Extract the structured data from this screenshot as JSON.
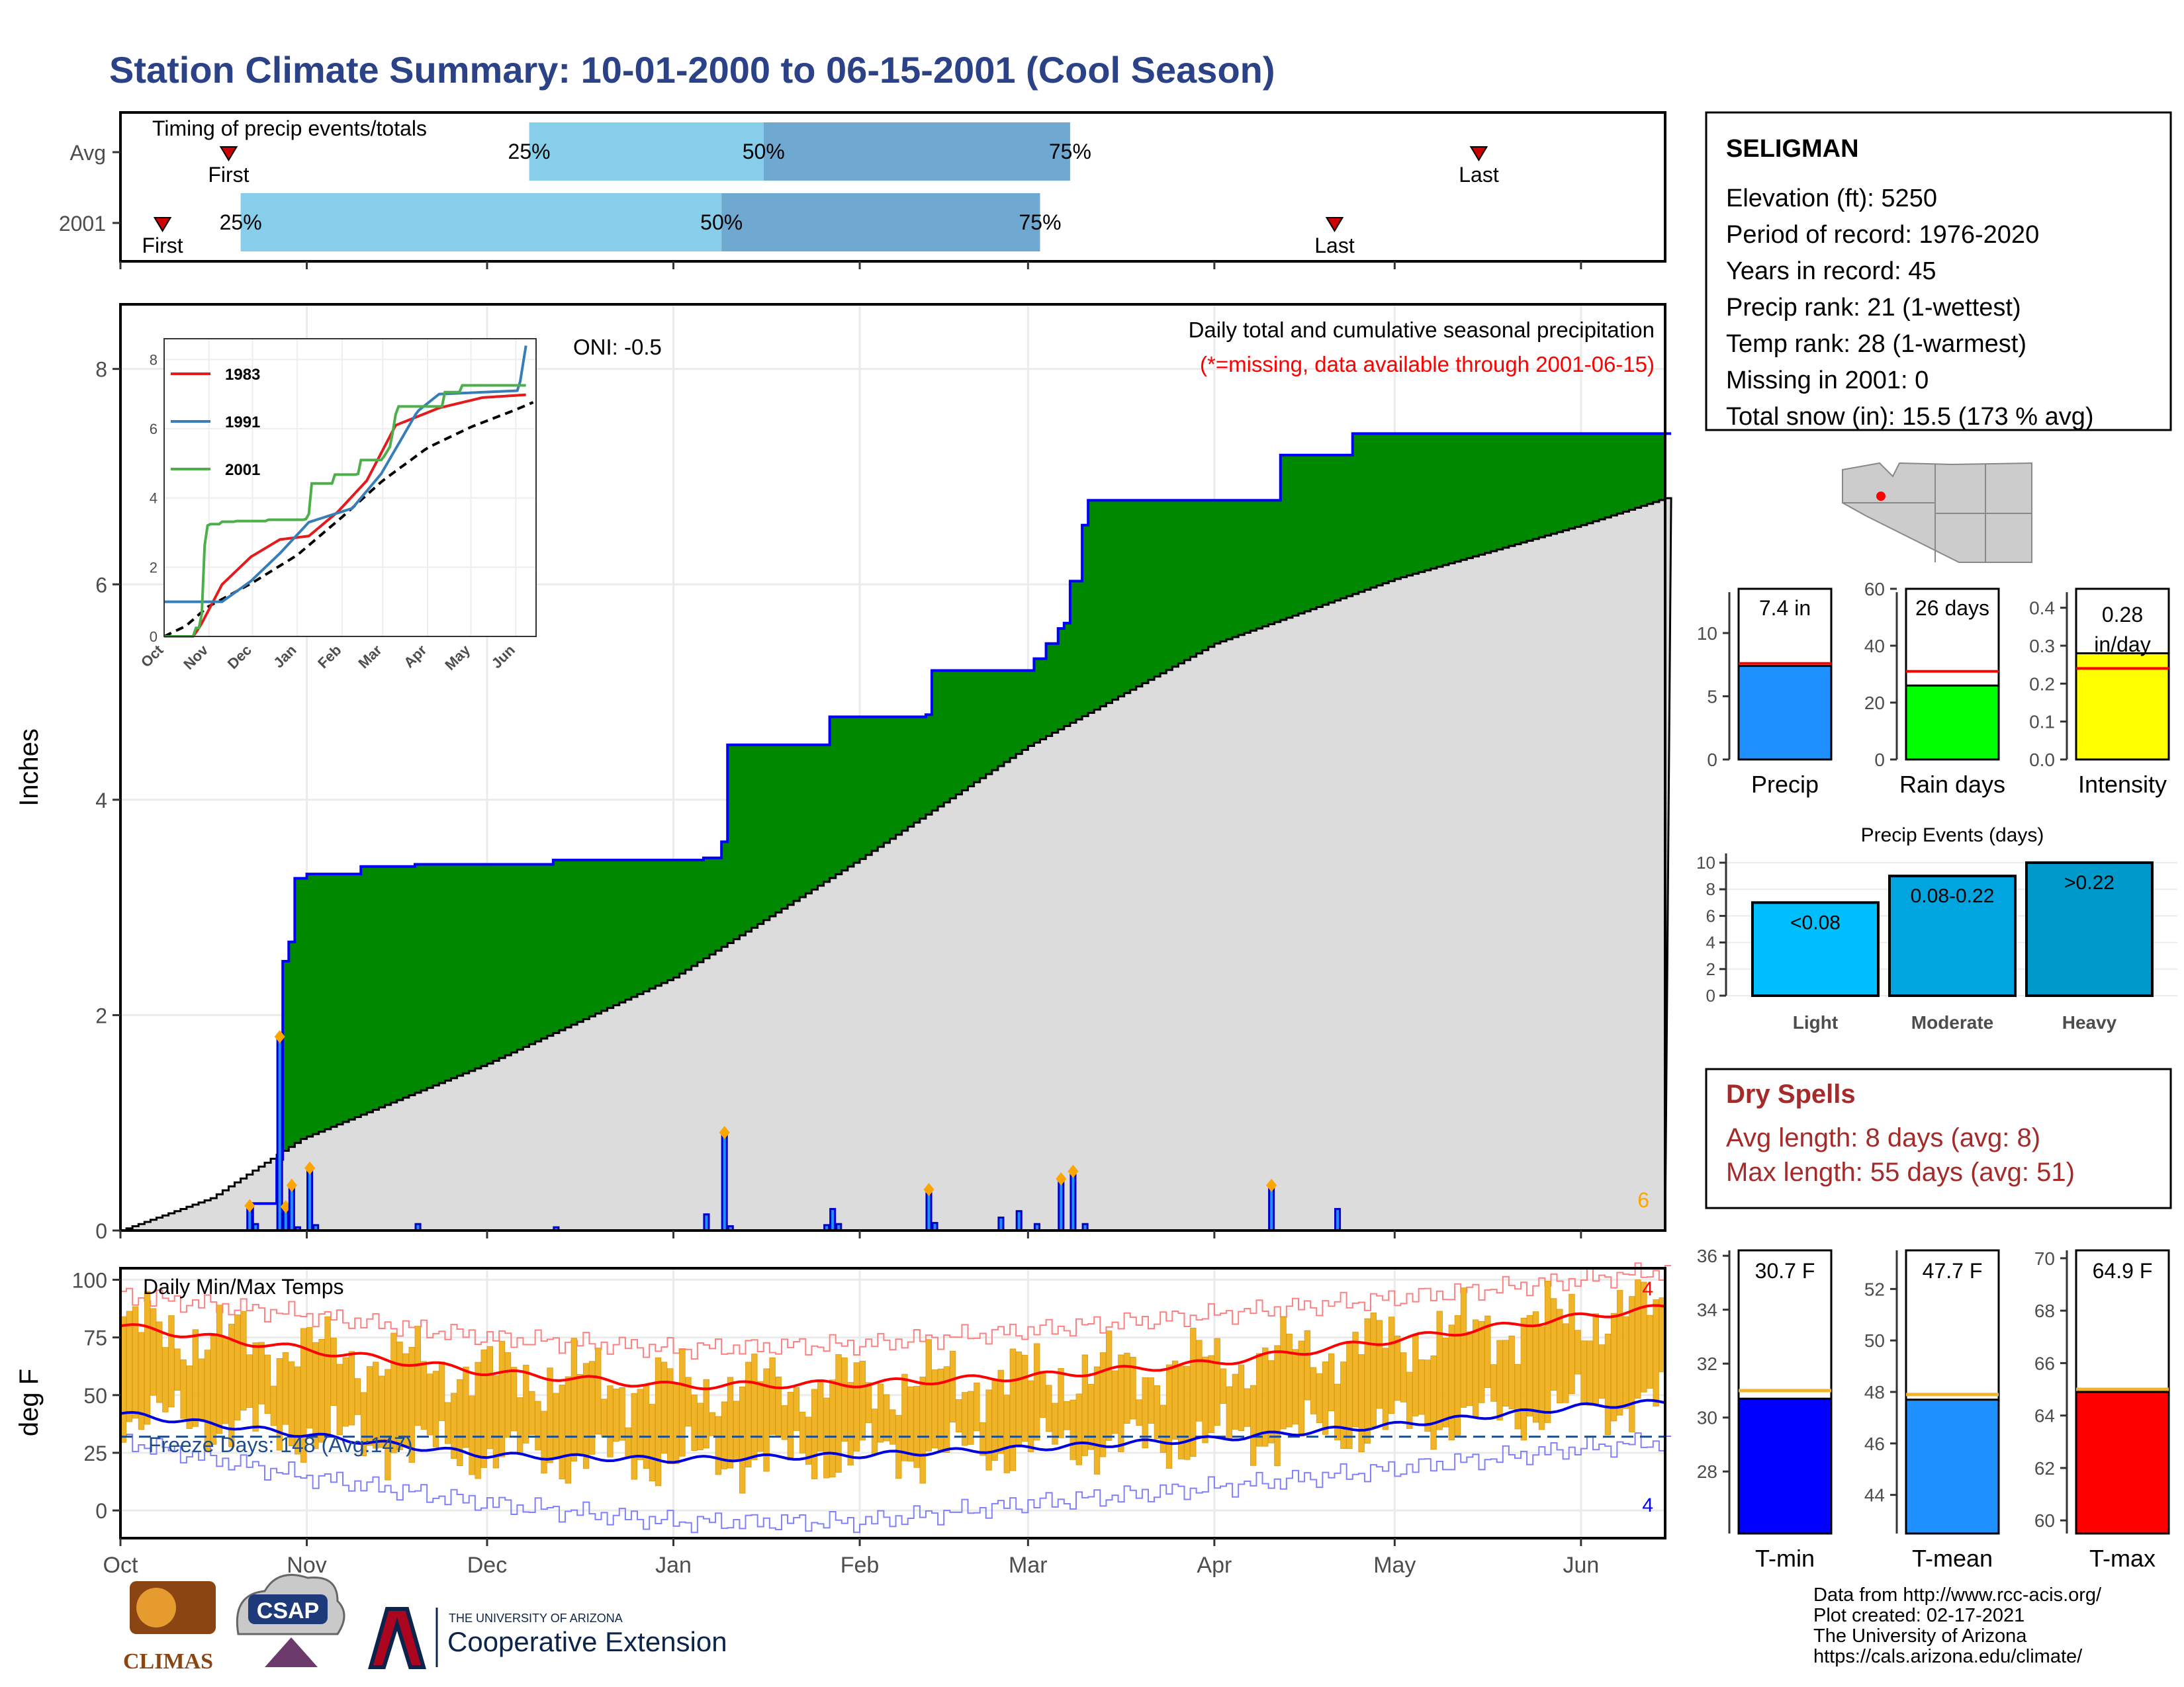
{
  "title": "Station Climate Summary: 10-01-2000 to 06-15-2001 (Cool Season)",
  "timing": {
    "label": "Timing of precip events/totals",
    "rows": [
      {
        "name": "Avg",
        "first": "2000-10-19",
        "p25": "2000-12-08",
        "p50": "2001-01-16",
        "p75": "2001-03-08",
        "last": "2001-05-15"
      },
      {
        "name": "2001",
        "first": "2000-10-08",
        "p25": "2000-10-21",
        "p50": "2001-01-09",
        "p75": "2001-03-03",
        "last": "2001-04-21"
      }
    ],
    "first_label": "First",
    "last_label": "Last",
    "pct_labels": [
      "25%",
      "50%",
      "75%"
    ]
  },
  "precip": {
    "ylabel": "Inches",
    "annotation": "Daily total and cumulative seasonal precipitation",
    "missing_note": "(*=missing, data available through 2001-06-15)",
    "oni": "ONI: -0.5",
    "corner_count": "6"
  },
  "inset": {
    "legend": [
      "1983",
      "1991",
      "2001"
    ],
    "colors": [
      "#e41a1c",
      "#377eb8",
      "#4daf4a"
    ],
    "months": [
      "Oct",
      "Nov",
      "Dec",
      "Jan",
      "Feb",
      "Mar",
      "Apr",
      "May",
      "Jun"
    ],
    "yticks": [
      "0",
      "2",
      "4",
      "6",
      "8"
    ]
  },
  "temps": {
    "label": "Daily Min/Max Temps",
    "ylabel": "deg F",
    "freeze_label": "Freeze Days: 148 (Avg:147)",
    "top_count": "4",
    "bottom_count": "4"
  },
  "station": {
    "name": "SELIGMAN",
    "lines": [
      "Elevation (ft): 5250",
      "Period of record: 1976-2020",
      "Years in record: 45",
      "Precip rank: 21 (1-wettest)",
      "Temp rank: 28 (1-warmest)",
      "Missing in 2001: 0",
      "Total snow (in): 15.5 (173 % avg)"
    ]
  },
  "mini_bars": [
    {
      "label": "Precip",
      "value_label": "7.4 in",
      "value": 7.4,
      "avg": 7.6,
      "color": "#1e90ff",
      "ymax": 13.5,
      "ticks": [
        "0",
        "5",
        "10"
      ],
      "tickvals": [
        0,
        5,
        10
      ]
    },
    {
      "label": "Rain days",
      "value_label": "26 days",
      "value": 26,
      "avg": 31,
      "color": "#00ff00",
      "ymax": 60,
      "ticks": [
        "0",
        "20",
        "40",
        "60"
      ],
      "tickvals": [
        0,
        20,
        40,
        60
      ]
    },
    {
      "label": "Intensity",
      "value_label": "0.28 in/day",
      "value": 0.28,
      "avg": 0.24,
      "color": "#ffff00",
      "ymax": 0.45,
      "ticks": [
        "0.0",
        "0.1",
        "0.2",
        "0.3",
        "0.4"
      ],
      "tickvals": [
        0,
        0.1,
        0.2,
        0.3,
        0.4
      ]
    }
  ],
  "events": {
    "title": "Precip Events (days)",
    "categories": [
      "Light",
      "Moderate",
      "Heavy"
    ],
    "labels": [
      "<0.08",
      "0.08-0.22",
      ">0.22"
    ],
    "values": [
      7,
      9,
      10
    ],
    "colors": [
      "#00bfff",
      "#00a5e0",
      "#0099cc"
    ],
    "yticks": [
      "0",
      "2",
      "4",
      "6",
      "8",
      "10"
    ]
  },
  "dry_spells": {
    "title": "Dry Spells",
    "avg_line": "Avg length: 8 days (avg: 8)",
    "max_line": "Max length: 55 days (avg: 51)"
  },
  "temp_bars": [
    {
      "label": "T-min",
      "value_label": "30.7 F",
      "value": 30.7,
      "avg": 31.0,
      "color": "#0000ff",
      "ymin": 25.7,
      "ymax": 36.2,
      "ticks": [
        "28",
        "30",
        "32",
        "34",
        "36"
      ],
      "tickvals": [
        28,
        30,
        32,
        34,
        36
      ]
    },
    {
      "label": "T-mean",
      "value_label": "47.7 F",
      "value": 47.7,
      "avg": 47.9,
      "color": "#1e90ff",
      "ymin": 42.5,
      "ymax": 53.5,
      "ticks": [
        "44",
        "46",
        "48",
        "50",
        "52"
      ],
      "tickvals": [
        44,
        46,
        48,
        50,
        52
      ]
    },
    {
      "label": "T-max",
      "value_label": "64.9 F",
      "value": 64.9,
      "avg": 65.0,
      "color": "#ff0000",
      "ymin": 59.5,
      "ymax": 70.3,
      "ticks": [
        "60",
        "62",
        "64",
        "66",
        "68",
        "70"
      ],
      "tickvals": [
        60,
        62,
        64,
        66,
        68,
        70
      ]
    }
  ],
  "footer": {
    "lines": [
      "Data from http://www.rcc-acis.org/",
      "Plot created: 02-17-2021",
      "The University of Arizona",
      "https://cals.arizona.edu/climate/"
    ],
    "climas": "CLIMAS",
    "csap": "CSAP",
    "ua_small": "THE UNIVERSITY OF ARIZONA",
    "ua_big": "Cooperative Extension"
  },
  "chart_data": {
    "type": "area",
    "xlabel": "",
    "ylabel": "Inches",
    "months": [
      "Oct",
      "Nov",
      "Dec",
      "Jan",
      "Feb",
      "Mar",
      "Apr",
      "May",
      "Jun"
    ],
    "month_days": [
      0,
      31,
      61,
      92,
      123,
      151,
      182,
      212,
      243
    ],
    "ylim": [
      0,
      8
    ],
    "yticks": [
      0,
      2,
      4,
      6,
      8
    ],
    "daily_precip_events": [
      {
        "date": "2000-10-22",
        "in": 0.23
      },
      {
        "date": "2000-10-23",
        "in": 0.06
      },
      {
        "date": "2000-10-27",
        "in": 1.8
      },
      {
        "date": "2000-10-28",
        "in": 0.22
      },
      {
        "date": "2000-10-29",
        "in": 0.42
      },
      {
        "date": "2000-10-30",
        "in": 0.03
      },
      {
        "date": "2000-11-01",
        "in": 0.58
      },
      {
        "date": "2000-11-02",
        "in": 0.05
      },
      {
        "date": "2000-11-19",
        "in": 0.06
      },
      {
        "date": "2000-12-12",
        "in": 0.03
      },
      {
        "date": "2001-01-06",
        "in": 0.15
      },
      {
        "date": "2001-01-09",
        "in": 0.91
      },
      {
        "date": "2001-01-10",
        "in": 0.04
      },
      {
        "date": "2001-01-26",
        "in": 0.05
      },
      {
        "date": "2001-01-27",
        "in": 0.2
      },
      {
        "date": "2001-01-28",
        "in": 0.06
      },
      {
        "date": "2001-02-12",
        "in": 0.38
      },
      {
        "date": "2001-02-13",
        "in": 0.07
      },
      {
        "date": "2001-02-24",
        "in": 0.12
      },
      {
        "date": "2001-02-27",
        "in": 0.18
      },
      {
        "date": "2001-03-02",
        "in": 0.06
      },
      {
        "date": "2001-03-06",
        "in": 0.48
      },
      {
        "date": "2001-03-08",
        "in": 0.55
      },
      {
        "date": "2001-03-10",
        "in": 0.06
      },
      {
        "date": "2001-04-10",
        "in": 0.42
      },
      {
        "date": "2001-04-21",
        "in": 0.2
      }
    ],
    "cumulative_2001": [
      [
        0,
        0
      ],
      [
        21,
        0
      ],
      [
        22,
        0.25
      ],
      [
        26,
        0.66
      ],
      [
        27,
        2.5
      ],
      [
        28,
        2.68
      ],
      [
        29,
        3.27
      ],
      [
        31,
        3.31
      ],
      [
        40,
        3.38
      ],
      [
        49,
        3.4
      ],
      [
        72,
        3.44
      ],
      [
        97,
        3.46
      ],
      [
        100,
        3.61
      ],
      [
        101,
        4.51
      ],
      [
        117,
        4.51
      ],
      [
        118,
        4.77
      ],
      [
        134,
        4.79
      ],
      [
        135,
        5.2
      ],
      [
        150,
        5.2
      ],
      [
        152,
        5.31
      ],
      [
        154,
        5.45
      ],
      [
        156,
        5.59
      ],
      [
        157,
        5.64
      ],
      [
        158,
        6.03
      ],
      [
        160,
        6.55
      ],
      [
        161,
        6.78
      ],
      [
        192,
        6.78
      ],
      [
        193,
        7.2
      ],
      [
        204,
        7.2
      ],
      [
        205,
        7.4
      ],
      [
        257,
        7.4
      ]
    ],
    "cumulative_avg": [
      [
        0,
        0
      ],
      [
        15,
        0.3
      ],
      [
        30,
        0.85
      ],
      [
        61,
        1.55
      ],
      [
        92,
        2.35
      ],
      [
        123,
        3.45
      ],
      [
        151,
        4.5
      ],
      [
        182,
        5.45
      ],
      [
        212,
        6.05
      ],
      [
        243,
        6.55
      ],
      [
        257,
        6.8
      ]
    ],
    "temps": {
      "ylim": [
        -12,
        105
      ],
      "yticks": [
        0,
        25,
        50,
        75,
        100
      ],
      "freeze_line": 32,
      "avg_max": [
        [
          0,
          80
        ],
        [
          30,
          70
        ],
        [
          61,
          60
        ],
        [
          92,
          54
        ],
        [
          123,
          55
        ],
        [
          151,
          58
        ],
        [
          182,
          64
        ],
        [
          212,
          74
        ],
        [
          243,
          84
        ],
        [
          257,
          88
        ]
      ],
      "avg_min": [
        [
          0,
          42
        ],
        [
          30,
          33
        ],
        [
          61,
          24
        ],
        [
          92,
          22
        ],
        [
          123,
          24
        ],
        [
          151,
          27
        ],
        [
          182,
          31
        ],
        [
          212,
          37
        ],
        [
          243,
          45
        ],
        [
          257,
          47
        ]
      ],
      "record_max": [
        [
          0,
          93
        ],
        [
          30,
          85
        ],
        [
          61,
          75
        ],
        [
          92,
          70
        ],
        [
          123,
          72
        ],
        [
          151,
          78
        ],
        [
          182,
          85
        ],
        [
          212,
          92
        ],
        [
          243,
          100
        ],
        [
          257,
          104
        ]
      ],
      "record_min": [
        [
          0,
          30
        ],
        [
          30,
          15
        ],
        [
          61,
          3
        ],
        [
          92,
          -5
        ],
        [
          123,
          -5
        ],
        [
          151,
          3
        ],
        [
          182,
          10
        ],
        [
          212,
          18
        ],
        [
          243,
          27
        ],
        [
          257,
          30
        ]
      ]
    }
  }
}
